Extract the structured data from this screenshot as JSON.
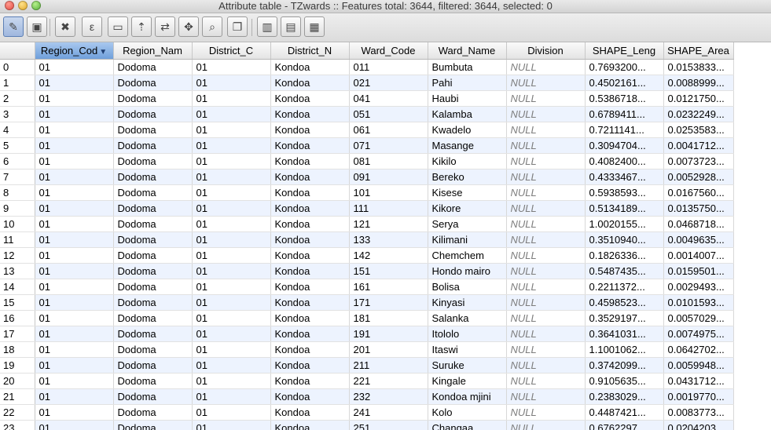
{
  "window": {
    "title": "Attribute table - TZwards :: Features total: 3644, filtered: 3644, selected: 0"
  },
  "toolbar": {
    "buttons": [
      {
        "name": "toggle-editing-button",
        "icon": "pencil-icon",
        "glyph": "✎",
        "active": true
      },
      {
        "name": "save-edits-button",
        "icon": "save-icon",
        "glyph": "▣",
        "active": false
      },
      {
        "name": "delete-selected-button",
        "icon": "delete-feature-icon",
        "glyph": "✖",
        "active": false
      },
      {
        "name": "expression-select-button",
        "icon": "expression-icon",
        "glyph": "ε",
        "active": false
      },
      {
        "name": "unselect-all-button",
        "icon": "unselect-icon",
        "glyph": "▭",
        "active": false
      },
      {
        "name": "move-selection-top-button",
        "icon": "move-top-icon",
        "glyph": "⇡",
        "active": false
      },
      {
        "name": "invert-selection-button",
        "icon": "invert-selection-icon",
        "glyph": "⇄",
        "active": false
      },
      {
        "name": "pan-to-selected-button",
        "icon": "pan-icon",
        "glyph": "✥",
        "active": false
      },
      {
        "name": "zoom-to-selected-button",
        "icon": "zoom-icon",
        "glyph": "⌕",
        "active": false
      },
      {
        "name": "copy-rows-button",
        "icon": "copy-icon",
        "glyph": "❐",
        "active": false
      },
      {
        "name": "delete-column-button",
        "icon": "delete-column-icon",
        "glyph": "▥",
        "active": false
      },
      {
        "name": "new-column-button",
        "icon": "new-column-icon",
        "glyph": "▤",
        "active": false
      },
      {
        "name": "field-calculator-button",
        "icon": "calculator-icon",
        "glyph": "▦",
        "active": false
      }
    ]
  },
  "table": {
    "columns": [
      "Region_Cod",
      "Region_Nam",
      "District_C",
      "District_N",
      "Ward_Code",
      "Ward_Name",
      "Division",
      "SHAPE_Leng",
      "SHAPE_Area"
    ],
    "sort_arrow": "▼",
    "rows": [
      [
        "0",
        "01",
        "Dodoma",
        "01",
        "Kondoa",
        "011",
        "Bumbuta",
        "NULL",
        "0.7693200...",
        "0.0153833..."
      ],
      [
        "1",
        "01",
        "Dodoma",
        "01",
        "Kondoa",
        "021",
        "Pahi",
        "NULL",
        "0.4502161...",
        "0.0088999..."
      ],
      [
        "2",
        "01",
        "Dodoma",
        "01",
        "Kondoa",
        "041",
        "Haubi",
        "NULL",
        "0.5386718...",
        "0.0121750..."
      ],
      [
        "3",
        "01",
        "Dodoma",
        "01",
        "Kondoa",
        "051",
        "Kalamba",
        "NULL",
        "0.6789411...",
        "0.0232249..."
      ],
      [
        "4",
        "01",
        "Dodoma",
        "01",
        "Kondoa",
        "061",
        "Kwadelo",
        "NULL",
        "0.7211141...",
        "0.0253583..."
      ],
      [
        "5",
        "01",
        "Dodoma",
        "01",
        "Kondoa",
        "071",
        "Masange",
        "NULL",
        "0.3094704...",
        "0.0041712..."
      ],
      [
        "6",
        "01",
        "Dodoma",
        "01",
        "Kondoa",
        "081",
        "Kikilo",
        "NULL",
        "0.4082400...",
        "0.0073723..."
      ],
      [
        "7",
        "01",
        "Dodoma",
        "01",
        "Kondoa",
        "091",
        "Bereko",
        "NULL",
        "0.4333467...",
        "0.0052928..."
      ],
      [
        "8",
        "01",
        "Dodoma",
        "01",
        "Kondoa",
        "101",
        "Kisese",
        "NULL",
        "0.5938593...",
        "0.0167560..."
      ],
      [
        "9",
        "01",
        "Dodoma",
        "01",
        "Kondoa",
        "111",
        "Kikore",
        "NULL",
        "0.5134189...",
        "0.0135750..."
      ],
      [
        "10",
        "01",
        "Dodoma",
        "01",
        "Kondoa",
        "121",
        "Serya",
        "NULL",
        "1.0020155...",
        "0.0468718..."
      ],
      [
        "11",
        "01",
        "Dodoma",
        "01",
        "Kondoa",
        "133",
        "Kilimani",
        "NULL",
        "0.3510940...",
        "0.0049635..."
      ],
      [
        "12",
        "01",
        "Dodoma",
        "01",
        "Kondoa",
        "142",
        "Chemchem",
        "NULL",
        "0.1826336...",
        "0.0014007..."
      ],
      [
        "13",
        "01",
        "Dodoma",
        "01",
        "Kondoa",
        "151",
        "Hondo mairo",
        "NULL",
        "0.5487435...",
        "0.0159501..."
      ],
      [
        "14",
        "01",
        "Dodoma",
        "01",
        "Kondoa",
        "161",
        "Bolisa",
        "NULL",
        "0.2211372...",
        "0.0029493..."
      ],
      [
        "15",
        "01",
        "Dodoma",
        "01",
        "Kondoa",
        "171",
        "Kinyasi",
        "NULL",
        "0.4598523...",
        "0.0101593..."
      ],
      [
        "16",
        "01",
        "Dodoma",
        "01",
        "Kondoa",
        "181",
        "Salanka",
        "NULL",
        "0.3529197...",
        "0.0057029..."
      ],
      [
        "17",
        "01",
        "Dodoma",
        "01",
        "Kondoa",
        "191",
        "Itololo",
        "NULL",
        "0.3641031...",
        "0.0074975..."
      ],
      [
        "18",
        "01",
        "Dodoma",
        "01",
        "Kondoa",
        "201",
        "Itaswi",
        "NULL",
        "1.1001062...",
        "0.0642702..."
      ],
      [
        "19",
        "01",
        "Dodoma",
        "01",
        "Kondoa",
        "211",
        "Suruke",
        "NULL",
        "0.3742099...",
        "0.0059948..."
      ],
      [
        "20",
        "01",
        "Dodoma",
        "01",
        "Kondoa",
        "221",
        "Kingale",
        "NULL",
        "0.9105635...",
        "0.0431712..."
      ],
      [
        "21",
        "01",
        "Dodoma",
        "01",
        "Kondoa",
        "232",
        "Kondoa mjini",
        "NULL",
        "0.2383029...",
        "0.0019770..."
      ],
      [
        "22",
        "01",
        "Dodoma",
        "01",
        "Kondoa",
        "241",
        "Kolo",
        "NULL",
        "0.4487421...",
        "0.0083773..."
      ],
      [
        "23",
        "01",
        "Dodoma",
        "01",
        "Kondoa",
        "251",
        "Changaa",
        "NULL",
        "0.6762297...",
        "0.0204203..."
      ]
    ]
  }
}
